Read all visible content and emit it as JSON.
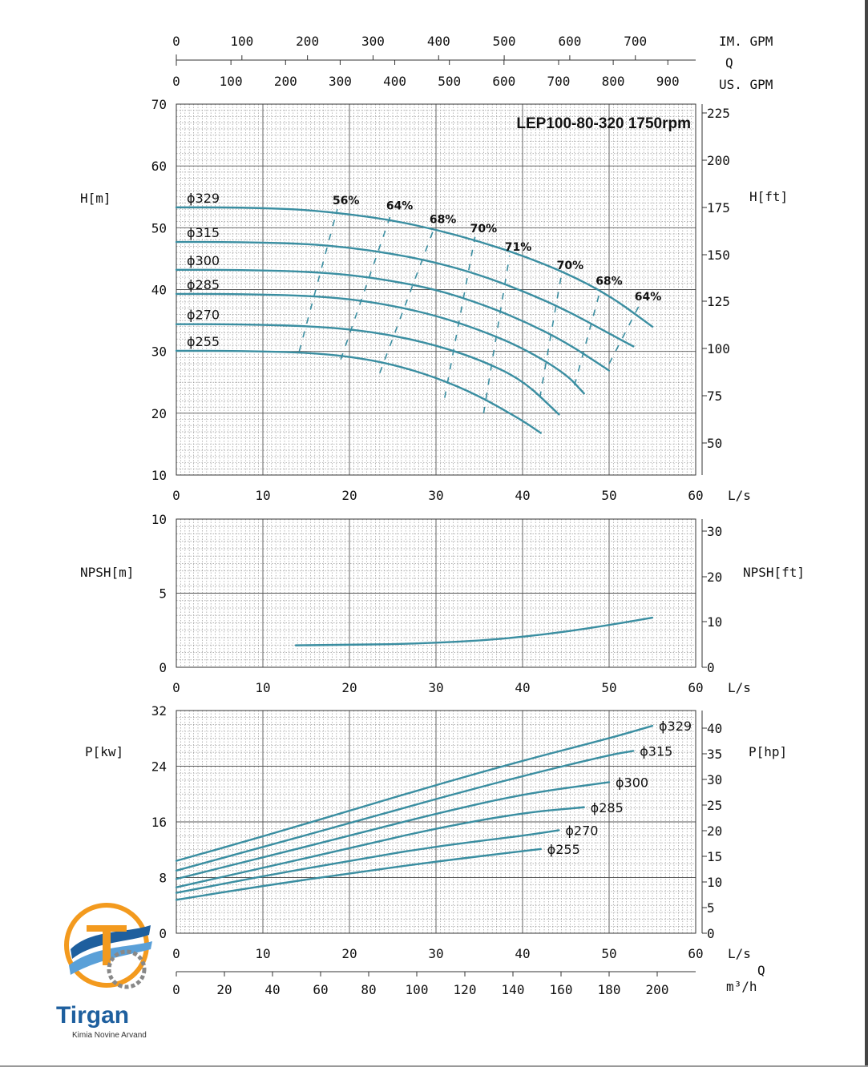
{
  "model_label": "LEP100-80-320 1750rpm",
  "top_axes": {
    "im_gpm": {
      "unit": "IM. GPM",
      "ticks": [
        "0",
        "100",
        "200",
        "300",
        "400",
        "500",
        "600",
        "700"
      ],
      "max": 792
    },
    "us_gpm": {
      "unit": "US. GPM",
      "ticks": [
        "0",
        "100",
        "200",
        "300",
        "400",
        "500",
        "600",
        "700",
        "800",
        "900"
      ],
      "max": 951
    },
    "q_label": "Q"
  },
  "bottom_axis": {
    "m3h_ticks": [
      "0",
      "20",
      "40",
      "60",
      "80",
      "100",
      "120",
      "140",
      "160",
      "180",
      "200"
    ],
    "m3h_unit": "m³/h",
    "q_label": "Q"
  },
  "ls_ticks": [
    "0",
    "10",
    "20",
    "30",
    "40",
    "50",
    "60"
  ],
  "ls_unit": "L/s",
  "chart_data": [
    {
      "type": "line",
      "name": "head",
      "ylabel": "H[m]",
      "ylabel_right": "H[ft]",
      "xlim": [
        0,
        60
      ],
      "ylim": [
        10,
        70
      ],
      "yticks": [
        "10",
        "20",
        "30",
        "40",
        "50",
        "60",
        "70"
      ],
      "yticks_right": [
        "50",
        "75",
        "100",
        "125",
        "150",
        "175",
        "200",
        "225"
      ],
      "series": [
        {
          "name": "ϕ329",
          "x": [
            0,
            5,
            10,
            15,
            20,
            25,
            30,
            35,
            40,
            45,
            50,
            55
          ],
          "y": [
            53.3,
            53.3,
            53.2,
            52.9,
            52.2,
            51.2,
            49.7,
            47.8,
            45.5,
            42.7,
            39.1,
            34.0
          ]
        },
        {
          "name": "ϕ315",
          "x": [
            0,
            5,
            10,
            15,
            20,
            25,
            30,
            35,
            40,
            45,
            50,
            52.8
          ],
          "y": [
            47.7,
            47.7,
            47.6,
            47.4,
            46.8,
            45.8,
            44.4,
            42.4,
            39.8,
            36.7,
            32.9,
            30.8
          ]
        },
        {
          "name": "ϕ300",
          "x": [
            0,
            5,
            10,
            15,
            20,
            25,
            30,
            35,
            40,
            45,
            50
          ],
          "y": [
            43.2,
            43.2,
            43.1,
            42.9,
            42.4,
            41.4,
            40.0,
            37.8,
            35.0,
            31.5,
            26.9
          ]
        },
        {
          "name": "ϕ285",
          "x": [
            0,
            5,
            10,
            15,
            20,
            25,
            30,
            35,
            40,
            45,
            47.1
          ],
          "y": [
            39.3,
            39.3,
            39.2,
            39.0,
            38.5,
            37.4,
            35.8,
            33.5,
            30.6,
            26.4,
            23.2
          ]
        },
        {
          "name": "ϕ270",
          "x": [
            0,
            5,
            10,
            15,
            20,
            25,
            30,
            35,
            40,
            44.2
          ],
          "y": [
            34.4,
            34.4,
            34.3,
            34.1,
            33.6,
            32.6,
            31.0,
            28.7,
            25.4,
            19.8
          ]
        },
        {
          "name": "ϕ255",
          "x": [
            0,
            5,
            10,
            15,
            20,
            25,
            30,
            35,
            40,
            42.1
          ],
          "y": [
            30.1,
            30.1,
            30.0,
            29.8,
            29.2,
            27.9,
            25.8,
            22.8,
            18.8,
            16.8
          ]
        }
      ],
      "efficiency": [
        {
          "label": "56%",
          "x": [
            14.2,
            18.6
          ],
          "y": [
            30.0,
            53.0
          ]
        },
        {
          "label": "64%",
          "x": [
            19.0,
            24.8
          ],
          "y": [
            28.7,
            52.2
          ]
        },
        {
          "label": "68%",
          "x": [
            23.5,
            29.8
          ],
          "y": [
            26.5,
            50.0
          ]
        },
        {
          "label": "70%",
          "x": [
            31.0,
            34.5
          ],
          "y": [
            22.5,
            48.5
          ]
        },
        {
          "label": "71%",
          "x": [
            35.5,
            38.5
          ],
          "y": [
            20.0,
            45.5
          ]
        },
        {
          "label": "70%",
          "x": [
            42.0,
            44.5
          ],
          "y": [
            22.5,
            42.5
          ]
        },
        {
          "label": "68%",
          "x": [
            46.0,
            49.0
          ],
          "y": [
            24.5,
            40.0
          ]
        },
        {
          "label": "64%",
          "x": [
            50.0,
            53.5
          ],
          "y": [
            28.0,
            37.5
          ]
        }
      ]
    },
    {
      "type": "line",
      "name": "npsh",
      "ylabel": "NPSH[m]",
      "ylabel_right": "NPSH[ft]",
      "xlim": [
        0,
        60
      ],
      "ylim": [
        0,
        10
      ],
      "yticks": [
        "0",
        "5",
        "10"
      ],
      "yticks_right": [
        "0",
        "10",
        "20",
        "30"
      ],
      "series": [
        {
          "name": "NPSH",
          "x": [
            13.8,
            20,
            25,
            30,
            35,
            40,
            45,
            50,
            55
          ],
          "y": [
            1.48,
            1.52,
            1.56,
            1.65,
            1.8,
            2.05,
            2.4,
            2.85,
            3.35
          ]
        }
      ]
    },
    {
      "type": "line",
      "name": "power",
      "ylabel": "P[kw]",
      "ylabel_right": "P[hp]",
      "xlim": [
        0,
        60
      ],
      "ylim": [
        0,
        32
      ],
      "yticks": [
        "0",
        "8",
        "16",
        "24",
        "32"
      ],
      "yticks_right": [
        "0",
        "5",
        "10",
        "15",
        "20",
        "25",
        "30",
        "35",
        "40"
      ],
      "series": [
        {
          "name": "ϕ329",
          "x": [
            0,
            10,
            20,
            30,
            40,
            50,
            55
          ],
          "y": [
            10.4,
            13.9,
            17.6,
            21.3,
            24.8,
            28.0,
            29.8
          ]
        },
        {
          "name": "ϕ315",
          "x": [
            0,
            10,
            20,
            30,
            40,
            50,
            52.8
          ],
          "y": [
            9.0,
            12.4,
            15.8,
            19.3,
            22.6,
            25.6,
            26.2
          ]
        },
        {
          "name": "ϕ300",
          "x": [
            0,
            10,
            20,
            30,
            40,
            50
          ],
          "y": [
            7.8,
            10.9,
            14.0,
            17.2,
            20.0,
            21.7
          ]
        },
        {
          "name": "ϕ285",
          "x": [
            0,
            10,
            20,
            30,
            40,
            47.1
          ],
          "y": [
            6.6,
            9.4,
            12.2,
            15.1,
            17.3,
            18.1
          ]
        },
        {
          "name": "ϕ270",
          "x": [
            0,
            10,
            20,
            30,
            40,
            44.2
          ],
          "y": [
            5.8,
            8.2,
            10.4,
            12.5,
            14.0,
            14.8
          ]
        },
        {
          "name": "ϕ255",
          "x": [
            0,
            10,
            20,
            30,
            40,
            42.1
          ],
          "y": [
            4.8,
            6.8,
            8.6,
            10.3,
            11.8,
            12.1
          ]
        }
      ]
    }
  ],
  "colors": {
    "curve": "#3a8ea1",
    "grid": "#999999",
    "logo_blue": "#1e5f9e",
    "logo_orange": "#f39a1e"
  },
  "logo": {
    "name": "Tirgan",
    "tagline": "Kimia Novine Arvand"
  }
}
